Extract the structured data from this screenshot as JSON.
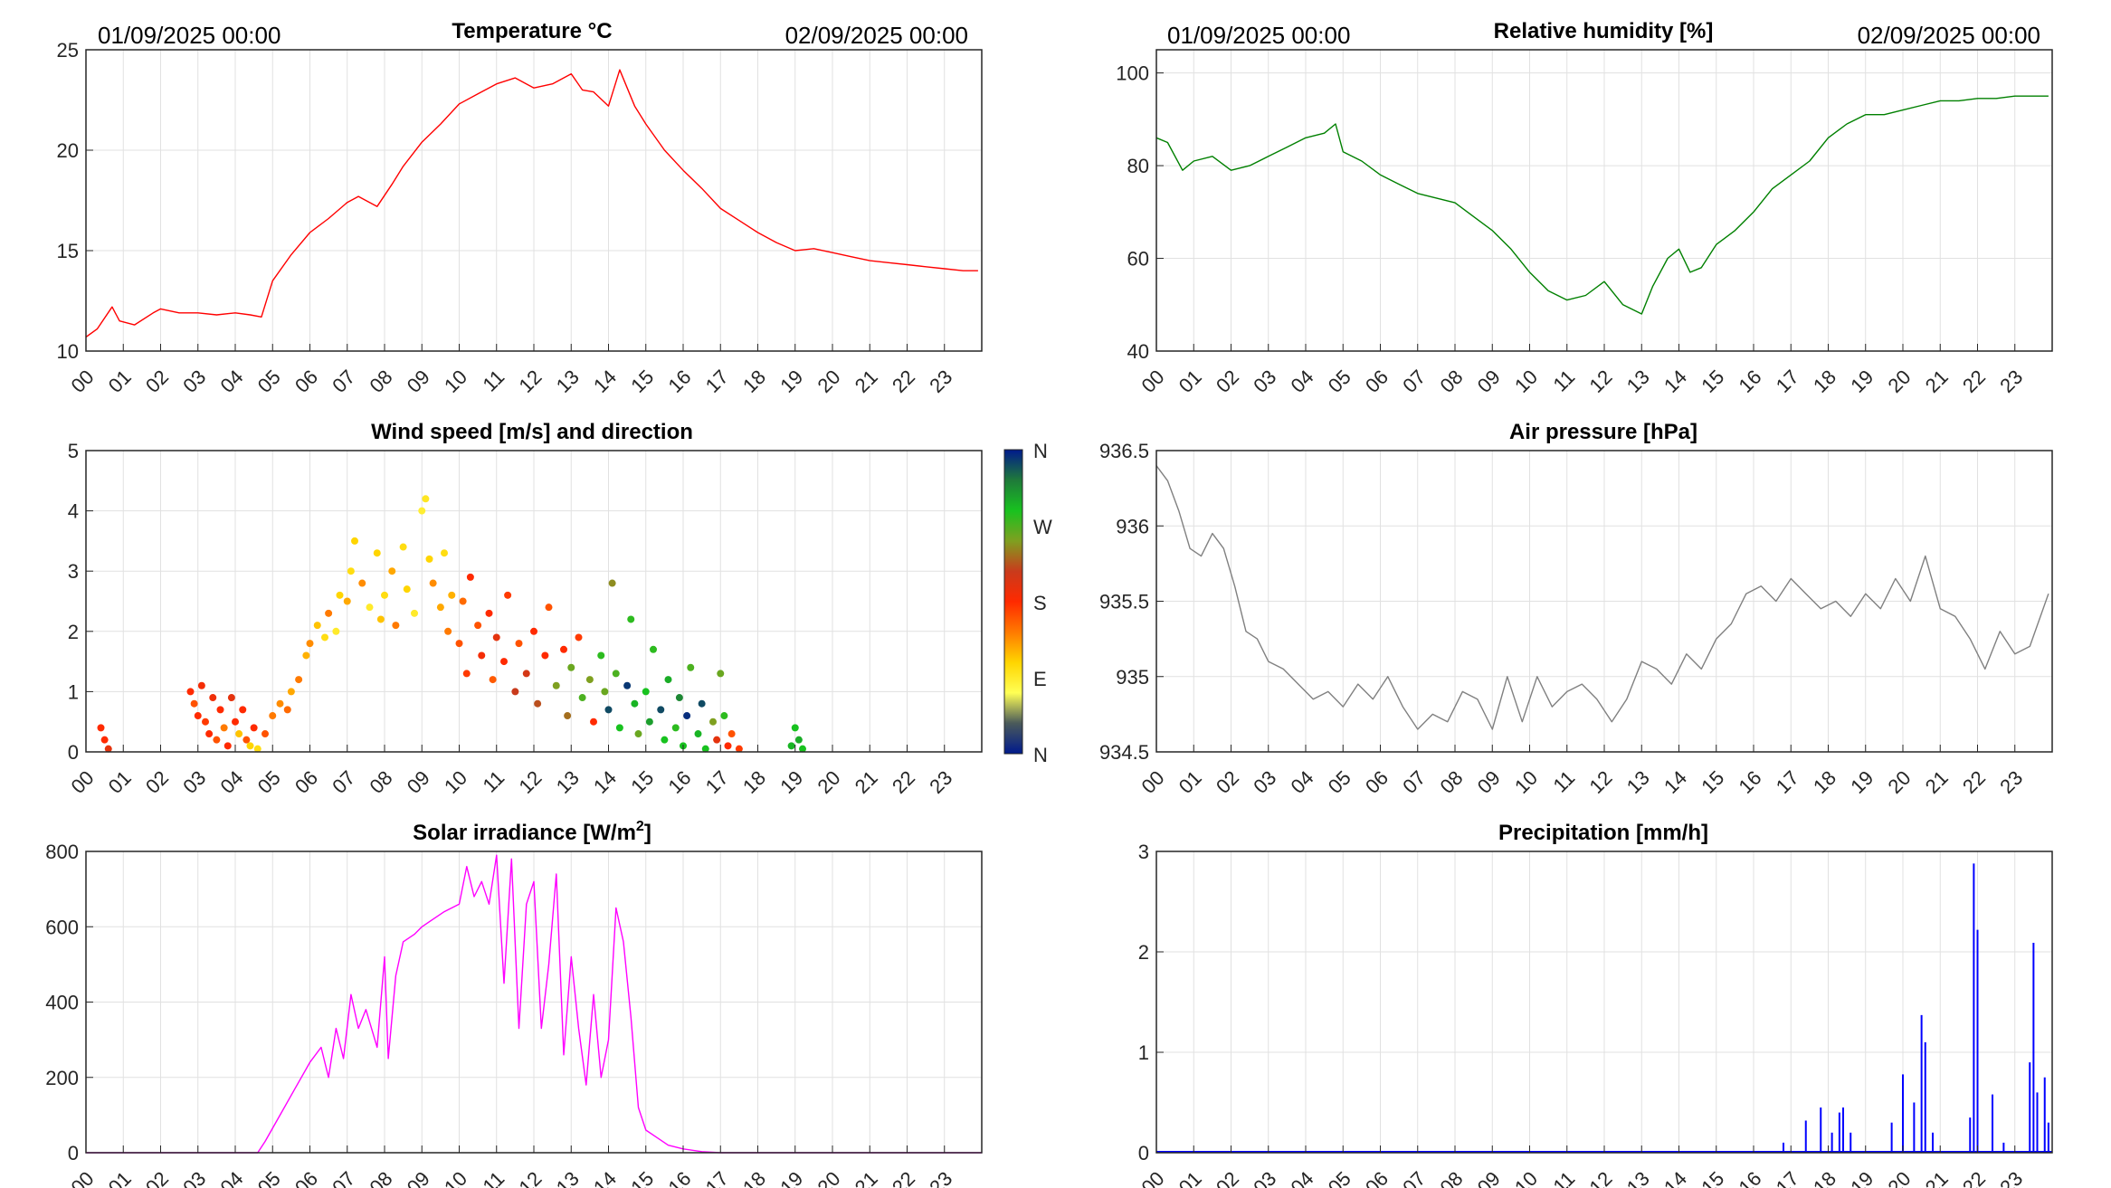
{
  "chart_data": [
    {
      "id": "temperature",
      "type": "line",
      "title": "Temperature °C",
      "date_start": "01/09/2025 00:00",
      "date_end": "02/09/2025 00:00",
      "color": "#ff0000",
      "xlim": [
        0,
        24
      ],
      "ylim": [
        10,
        25
      ],
      "yticks": [
        "10",
        "15",
        "20",
        "25"
      ],
      "ytick_values": [
        10,
        15,
        20,
        25
      ],
      "x": [
        0,
        0.3,
        0.7,
        0.9,
        1.3,
        1.8,
        2.0,
        2.5,
        3.0,
        3.5,
        4.0,
        4.4,
        4.7,
        5.0,
        5.5,
        6.0,
        6.5,
        7.0,
        7.3,
        7.8,
        8.2,
        8.5,
        9.0,
        9.5,
        10.0,
        10.5,
        11.0,
        11.5,
        12.0,
        12.5,
        13.0,
        13.3,
        13.6,
        14.0,
        14.3,
        14.7,
        15.0,
        15.5,
        16.0,
        16.5,
        17.0,
        17.5,
        18.0,
        18.5,
        19.0,
        19.5,
        20.0,
        20.5,
        21.0,
        21.5,
        22.0,
        22.5,
        23.0,
        23.5,
        23.9
      ],
      "values": [
        10.7,
        11.1,
        12.2,
        11.5,
        11.3,
        11.9,
        12.1,
        11.9,
        11.9,
        11.8,
        11.9,
        11.8,
        11.7,
        13.5,
        14.8,
        15.9,
        16.6,
        17.4,
        17.7,
        17.2,
        18.3,
        19.2,
        20.4,
        21.3,
        22.3,
        22.8,
        23.3,
        23.6,
        23.1,
        23.3,
        23.8,
        23.0,
        22.9,
        22.2,
        24.0,
        22.2,
        21.3,
        20.0,
        19.0,
        18.1,
        17.1,
        16.5,
        15.9,
        15.4,
        15.0,
        15.1,
        14.9,
        14.7,
        14.5,
        14.4,
        14.3,
        14.2,
        14.1,
        14.0,
        14.0
      ]
    },
    {
      "id": "humidity",
      "type": "line",
      "title": "Relative humidity [%]",
      "date_start": "01/09/2025 00:00",
      "date_end": "02/09/2025 00:00",
      "color": "#008000",
      "xlim": [
        0,
        24
      ],
      "ylim": [
        40,
        105
      ],
      "yticks": [
        "40",
        "60",
        "80",
        "100"
      ],
      "ytick_values": [
        40,
        60,
        80,
        100
      ],
      "x": [
        0,
        0.3,
        0.7,
        1.0,
        1.5,
        2.0,
        2.5,
        3.0,
        3.5,
        4.0,
        4.5,
        4.8,
        5.0,
        5.5,
        6.0,
        6.5,
        7.0,
        7.5,
        8.0,
        8.5,
        9.0,
        9.5,
        10.0,
        10.5,
        11.0,
        11.5,
        12.0,
        12.5,
        13.0,
        13.3,
        13.7,
        14.0,
        14.3,
        14.6,
        15.0,
        15.5,
        16.0,
        16.5,
        17.0,
        17.5,
        18.0,
        18.5,
        19.0,
        19.5,
        20.0,
        20.5,
        21.0,
        21.5,
        22.0,
        22.5,
        23.0,
        23.5,
        23.9
      ],
      "values": [
        86,
        85,
        79,
        81,
        82,
        79,
        80,
        82,
        84,
        86,
        87,
        89,
        83,
        81,
        78,
        76,
        74,
        73,
        72,
        69,
        66,
        62,
        57,
        53,
        51,
        52,
        55,
        50,
        48,
        54,
        60,
        62,
        57,
        58,
        63,
        66,
        70,
        75,
        78,
        81,
        86,
        89,
        91,
        91,
        92,
        93,
        94,
        94,
        94.5,
        94.5,
        95,
        95,
        95
      ]
    },
    {
      "id": "wind",
      "type": "scatter",
      "title": "Wind speed [m/s] and direction",
      "xlim": [
        0,
        24
      ],
      "ylim": [
        0,
        5
      ],
      "yticks": [
        "0",
        "1",
        "2",
        "3",
        "4",
        "5"
      ],
      "ytick_values": [
        0,
        1,
        2,
        3,
        4,
        5
      ],
      "colorbar_labels": [
        "N",
        "W",
        "S",
        "E",
        "N"
      ],
      "colorbar_colors": [
        "#001a8c",
        "#1f7a3a",
        "#18c21f",
        "#7fa020",
        "#c93b1c",
        "#ff2a00",
        "#ff7a00",
        "#ffd500",
        "#ffff55",
        "#4a5a5a",
        "#001a8c"
      ],
      "points": [
        [
          0.4,
          0.4,
          0.5
        ],
        [
          0.5,
          0.2,
          0.5
        ],
        [
          0.6,
          0.05,
          0.45
        ],
        [
          2.8,
          1.0,
          0.5
        ],
        [
          2.9,
          0.8,
          0.55
        ],
        [
          3.0,
          0.6,
          0.5
        ],
        [
          3.1,
          1.1,
          0.48
        ],
        [
          3.2,
          0.5,
          0.52
        ],
        [
          3.3,
          0.3,
          0.5
        ],
        [
          3.4,
          0.9,
          0.47
        ],
        [
          3.5,
          0.2,
          0.55
        ],
        [
          3.6,
          0.7,
          0.5
        ],
        [
          3.7,
          0.4,
          0.6
        ],
        [
          3.8,
          0.1,
          0.5
        ],
        [
          3.9,
          0.9,
          0.45
        ],
        [
          4.0,
          0.5,
          0.5
        ],
        [
          4.1,
          0.3,
          0.68
        ],
        [
          4.2,
          0.7,
          0.5
        ],
        [
          4.3,
          0.2,
          0.55
        ],
        [
          4.4,
          0.1,
          0.7
        ],
        [
          4.5,
          0.4,
          0.5
        ],
        [
          4.6,
          0.05,
          0.72
        ],
        [
          4.8,
          0.3,
          0.55
        ],
        [
          5.0,
          0.6,
          0.6
        ],
        [
          5.2,
          0.8,
          0.62
        ],
        [
          5.4,
          0.7,
          0.58
        ],
        [
          5.5,
          1.0,
          0.65
        ],
        [
          5.7,
          1.2,
          0.6
        ],
        [
          5.9,
          1.6,
          0.66
        ],
        [
          6.0,
          1.8,
          0.62
        ],
        [
          6.2,
          2.1,
          0.68
        ],
        [
          6.4,
          1.9,
          0.72
        ],
        [
          6.5,
          2.3,
          0.6
        ],
        [
          6.7,
          2.0,
          0.75
        ],
        [
          6.8,
          2.6,
          0.7
        ],
        [
          7.0,
          2.5,
          0.65
        ],
        [
          7.1,
          3.0,
          0.72
        ],
        [
          7.2,
          3.5,
          0.7
        ],
        [
          7.4,
          2.8,
          0.62
        ],
        [
          7.6,
          2.4,
          0.75
        ],
        [
          7.8,
          3.3,
          0.7
        ],
        [
          7.9,
          2.2,
          0.68
        ],
        [
          8.0,
          2.6,
          0.72
        ],
        [
          8.2,
          3.0,
          0.65
        ],
        [
          8.3,
          2.1,
          0.6
        ],
        [
          8.5,
          3.4,
          0.72
        ],
        [
          8.6,
          2.7,
          0.7
        ],
        [
          8.8,
          2.3,
          0.75
        ],
        [
          9.0,
          4.0,
          0.76
        ],
        [
          9.1,
          4.2,
          0.74
        ],
        [
          9.2,
          3.2,
          0.7
        ],
        [
          9.3,
          2.8,
          0.62
        ],
        [
          9.5,
          2.4,
          0.65
        ],
        [
          9.6,
          3.3,
          0.72
        ],
        [
          9.7,
          2.0,
          0.6
        ],
        [
          9.8,
          2.6,
          0.66
        ],
        [
          10.0,
          1.8,
          0.55
        ],
        [
          10.1,
          2.5,
          0.58
        ],
        [
          10.2,
          1.3,
          0.52
        ],
        [
          10.3,
          2.9,
          0.5
        ],
        [
          10.5,
          2.1,
          0.55
        ],
        [
          10.6,
          1.6,
          0.48
        ],
        [
          10.8,
          2.3,
          0.5
        ],
        [
          10.9,
          1.2,
          0.56
        ],
        [
          11.0,
          1.9,
          0.45
        ],
        [
          11.2,
          1.5,
          0.5
        ],
        [
          11.3,
          2.6,
          0.52
        ],
        [
          11.5,
          1.0,
          0.4
        ],
        [
          11.6,
          1.8,
          0.55
        ],
        [
          11.8,
          1.3,
          0.42
        ],
        [
          12.0,
          2.0,
          0.5
        ],
        [
          12.1,
          0.8,
          0.38
        ],
        [
          12.3,
          1.6,
          0.5
        ],
        [
          12.4,
          2.4,
          0.55
        ],
        [
          12.6,
          1.1,
          0.3
        ],
        [
          12.8,
          1.7,
          0.5
        ],
        [
          12.9,
          0.6,
          0.35
        ],
        [
          13.0,
          1.4,
          0.28
        ],
        [
          13.2,
          1.9,
          0.52
        ],
        [
          13.3,
          0.9,
          0.25
        ],
        [
          13.5,
          1.2,
          0.3
        ],
        [
          13.6,
          0.5,
          0.5
        ],
        [
          13.8,
          1.6,
          0.22
        ],
        [
          13.9,
          1.0,
          0.28
        ],
        [
          14.0,
          0.7,
          0.05
        ],
        [
          14.1,
          2.8,
          0.32
        ],
        [
          14.2,
          1.3,
          0.25
        ],
        [
          14.3,
          0.4,
          0.2
        ],
        [
          14.5,
          1.1,
          0.03
        ],
        [
          14.6,
          2.2,
          0.22
        ],
        [
          14.7,
          0.8,
          0.18
        ],
        [
          14.8,
          0.3,
          0.28
        ],
        [
          15.0,
          1.0,
          0.2
        ],
        [
          15.1,
          0.5,
          0.15
        ],
        [
          15.2,
          1.7,
          0.22
        ],
        [
          15.4,
          0.7,
          0.05
        ],
        [
          15.5,
          0.2,
          0.2
        ],
        [
          15.6,
          1.2,
          0.17
        ],
        [
          15.8,
          0.4,
          0.22
        ],
        [
          15.9,
          0.9,
          0.12
        ],
        [
          16.0,
          0.1,
          0.2
        ],
        [
          16.1,
          0.6,
          0.02
        ],
        [
          16.2,
          1.4,
          0.25
        ],
        [
          16.4,
          0.3,
          0.18
        ],
        [
          16.5,
          0.8,
          0.05
        ],
        [
          16.6,
          0.05,
          0.2
        ],
        [
          16.8,
          0.5,
          0.3
        ],
        [
          16.9,
          0.2,
          0.45
        ],
        [
          17.0,
          1.3,
          0.28
        ],
        [
          17.1,
          0.6,
          0.22
        ],
        [
          17.2,
          0.1,
          0.5
        ],
        [
          17.3,
          0.3,
          0.55
        ],
        [
          17.5,
          0.05,
          0.52
        ],
        [
          18.9,
          0.1,
          0.18
        ],
        [
          19.0,
          0.4,
          0.2
        ],
        [
          19.1,
          0.2,
          0.17
        ],
        [
          19.2,
          0.05,
          0.2
        ]
      ]
    },
    {
      "id": "pressure",
      "type": "line",
      "title": "Air pressure [hPa]",
      "color": "#808080",
      "xlim": [
        0,
        24
      ],
      "ylim": [
        934.5,
        936.5
      ],
      "yticks": [
        "934.5",
        "935",
        "935.5",
        "936",
        "936.5"
      ],
      "ytick_values": [
        934.5,
        935,
        935.5,
        936,
        936.5
      ],
      "x": [
        0,
        0.3,
        0.6,
        0.9,
        1.2,
        1.5,
        1.8,
        2.1,
        2.4,
        2.7,
        3.0,
        3.4,
        3.8,
        4.2,
        4.6,
        5.0,
        5.4,
        5.8,
        6.2,
        6.6,
        7.0,
        7.4,
        7.8,
        8.2,
        8.6,
        9.0,
        9.4,
        9.8,
        10.2,
        10.6,
        11.0,
        11.4,
        11.8,
        12.2,
        12.6,
        13.0,
        13.4,
        13.8,
        14.2,
        14.6,
        15.0,
        15.4,
        15.8,
        16.2,
        16.6,
        17.0,
        17.4,
        17.8,
        18.2,
        18.6,
        19.0,
        19.4,
        19.8,
        20.2,
        20.6,
        21.0,
        21.4,
        21.8,
        22.2,
        22.6,
        23.0,
        23.4,
        23.9
      ],
      "values": [
        936.4,
        936.3,
        936.1,
        935.85,
        935.8,
        935.95,
        935.85,
        935.6,
        935.3,
        935.25,
        935.1,
        935.05,
        934.95,
        934.85,
        934.9,
        934.8,
        934.95,
        934.85,
        935.0,
        934.8,
        934.65,
        934.75,
        934.7,
        934.9,
        934.85,
        934.65,
        935.0,
        934.7,
        935.0,
        934.8,
        934.9,
        934.95,
        934.85,
        934.7,
        934.85,
        935.1,
        935.05,
        934.95,
        935.15,
        935.05,
        935.25,
        935.35,
        935.55,
        935.6,
        935.5,
        935.65,
        935.55,
        935.45,
        935.5,
        935.4,
        935.55,
        935.45,
        935.65,
        935.5,
        935.8,
        935.45,
        935.4,
        935.25,
        935.05,
        935.3,
        935.15,
        935.2,
        935.55
      ]
    },
    {
      "id": "solar",
      "type": "line",
      "title": "Solar irradiance [W/m",
      "title_sup": "2",
      "title_tail": "]",
      "color": "#ff00ff",
      "xlim": [
        0,
        24
      ],
      "ylim": [
        0,
        800
      ],
      "yticks": [
        "0",
        "200",
        "400",
        "600",
        "800"
      ],
      "ytick_values": [
        0,
        200,
        400,
        600,
        800
      ],
      "x": [
        0,
        4.6,
        4.8,
        5.2,
        5.6,
        6.0,
        6.3,
        6.5,
        6.7,
        6.9,
        7.1,
        7.3,
        7.5,
        7.8,
        8.0,
        8.1,
        8.3,
        8.5,
        8.8,
        9.0,
        9.3,
        9.6,
        10.0,
        10.2,
        10.4,
        10.6,
        10.8,
        11.0,
        11.2,
        11.4,
        11.6,
        11.8,
        12.0,
        12.2,
        12.4,
        12.6,
        12.8,
        13.0,
        13.2,
        13.4,
        13.6,
        13.8,
        14.0,
        14.2,
        14.4,
        14.6,
        14.8,
        15.0,
        15.3,
        15.6,
        16.0,
        16.5,
        17.0,
        24.0
      ],
      "values": [
        0,
        0,
        30,
        100,
        170,
        240,
        280,
        200,
        330,
        250,
        420,
        330,
        380,
        280,
        520,
        250,
        470,
        560,
        580,
        600,
        620,
        640,
        660,
        760,
        680,
        720,
        660,
        790,
        450,
        780,
        330,
        660,
        720,
        330,
        500,
        740,
        260,
        520,
        330,
        180,
        420,
        200,
        300,
        650,
        560,
        360,
        120,
        60,
        40,
        20,
        10,
        3,
        0,
        0
      ]
    },
    {
      "id": "precipitation",
      "type": "line",
      "title": "Precipitation [mm/h]",
      "color": "#0000ff",
      "xlim": [
        0,
        24
      ],
      "ylim": [
        0,
        3
      ],
      "yticks": [
        "0",
        "1",
        "2",
        "3"
      ],
      "ytick_values": [
        0,
        1,
        2,
        3
      ],
      "spikes": [
        [
          16.8,
          0.1
        ],
        [
          17.4,
          0.32
        ],
        [
          17.8,
          0.45
        ],
        [
          18.1,
          0.2
        ],
        [
          18.3,
          0.4
        ],
        [
          18.4,
          0.45
        ],
        [
          18.6,
          0.2
        ],
        [
          19.7,
          0.3
        ],
        [
          20.0,
          0.78
        ],
        [
          20.3,
          0.5
        ],
        [
          20.5,
          1.37
        ],
        [
          20.6,
          1.1
        ],
        [
          20.8,
          0.2
        ],
        [
          21.8,
          0.35
        ],
        [
          21.9,
          2.88
        ],
        [
          22.0,
          2.22
        ],
        [
          22.4,
          0.58
        ],
        [
          22.7,
          0.1
        ],
        [
          23.4,
          0.9
        ],
        [
          23.5,
          2.09
        ],
        [
          23.6,
          0.6
        ],
        [
          23.8,
          0.75
        ],
        [
          23.9,
          0.3
        ]
      ]
    }
  ]
}
